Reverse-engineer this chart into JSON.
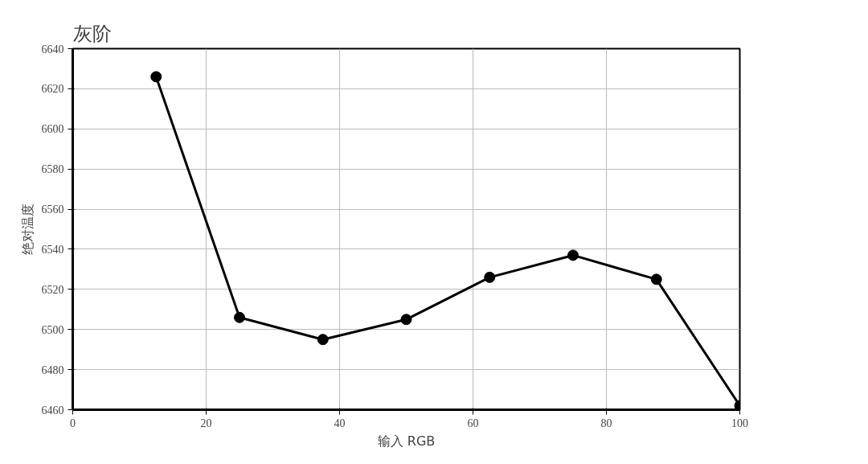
{
  "chart_data": {
    "type": "line",
    "title": "灰阶",
    "xlabel": "输入 RGB",
    "ylabel": "绝对温度",
    "x": [
      12.5,
      25,
      37.5,
      50,
      62.5,
      75,
      87.5,
      100
    ],
    "series": [
      {
        "color": "#000000",
        "values": [
          6626,
          6506,
          6495,
          6505,
          6526,
          6537,
          6525,
          6462
        ]
      }
    ],
    "xlim": [
      0,
      100
    ],
    "xticks": [
      0,
      20,
      40,
      60,
      80,
      100
    ],
    "ylim": [
      6460,
      6640
    ],
    "yticks": [
      6460,
      6480,
      6500,
      6520,
      6540,
      6560,
      6580,
      6600,
      6620,
      6640
    ],
    "grid": true,
    "marker": "circle",
    "line_style": "solid"
  }
}
